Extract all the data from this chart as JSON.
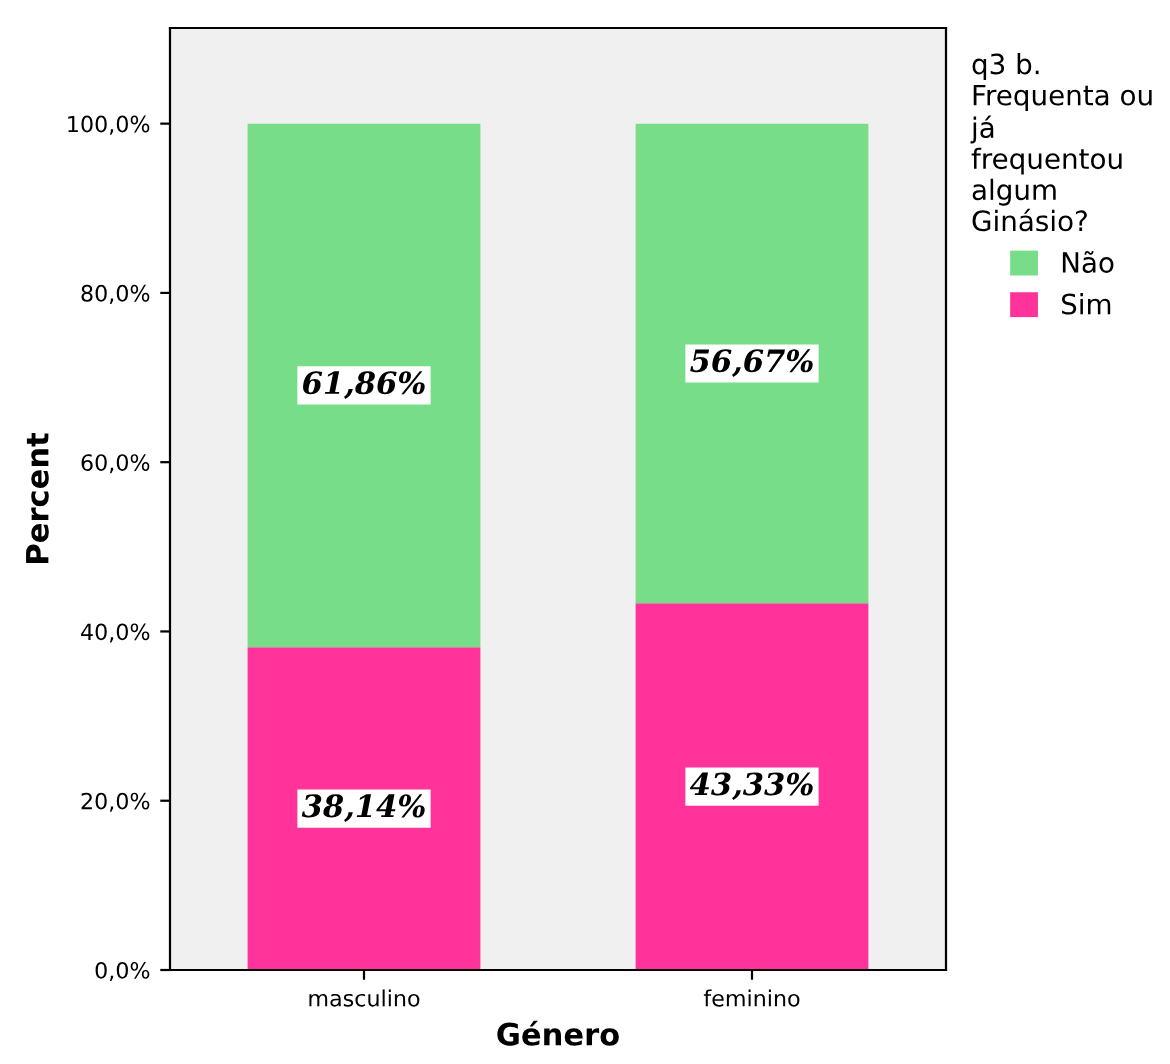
{
  "chart_data": {
    "type": "bar",
    "stacked": true,
    "categories": [
      "masculino",
      "feminino"
    ],
    "series": [
      {
        "name": "Sim",
        "color": "#ff3399",
        "values": [
          38.14,
          43.33
        ],
        "value_labels": [
          "38,14%",
          "43,33%"
        ]
      },
      {
        "name": "Não",
        "color": "#77dd88",
        "values": [
          61.86,
          56.67
        ],
        "value_labels": [
          "61,86%",
          "56,67%"
        ]
      }
    ],
    "xlabel": "Género",
    "ylabel": "Percent",
    "legend_title": "q3 b. Frequenta ou já frequentou algum Ginásio?",
    "legend": "right",
    "ylim": [
      0,
      111.3
    ],
    "yticks": [
      {
        "value": 0,
        "label": "0,0%"
      },
      {
        "value": 20,
        "label": "20,0%"
      },
      {
        "value": 40,
        "label": "40,0%"
      },
      {
        "value": 60,
        "label": "60,0%"
      },
      {
        "value": 80,
        "label": "80,0%"
      },
      {
        "value": 100,
        "label": "100,0%"
      }
    ],
    "grid": false
  }
}
